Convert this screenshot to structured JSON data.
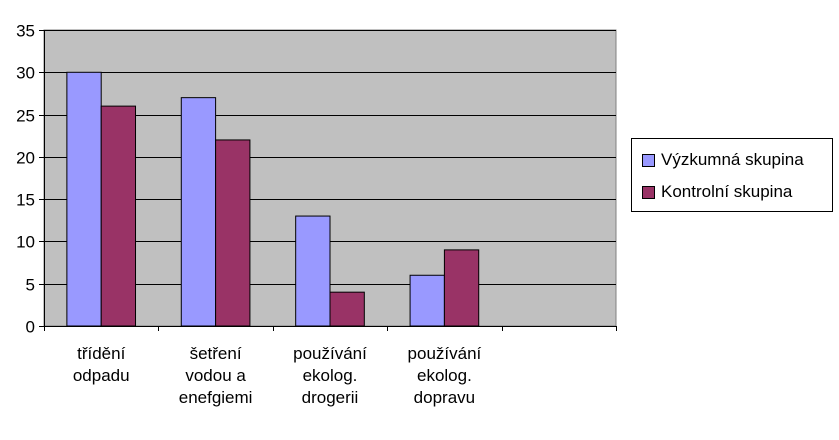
{
  "chart_data": {
    "type": "bar",
    "categories": [
      [
        "třídění",
        "odpadu"
      ],
      [
        "šetření",
        "vodou a",
        "enefgiemi"
      ],
      [
        "používání",
        "ekolog.",
        "drogerii"
      ],
      [
        "používání",
        "ekolog.",
        "dopravu"
      ],
      [
        ""
      ]
    ],
    "series": [
      {
        "name": "Výzkumná skupina",
        "values": [
          30,
          27,
          13,
          6,
          null
        ],
        "color": "#9999ff"
      },
      {
        "name": "Kontrolní skupina",
        "values": [
          26,
          22,
          4,
          9,
          null
        ],
        "color": "#993366"
      }
    ],
    "ylim": [
      0,
      35
    ],
    "yticks": [
      "0",
      "5",
      "10",
      "15",
      "20",
      "25",
      "30",
      "35"
    ],
    "grid": true,
    "plot_background": "#c0c0c0",
    "legend_position": "right",
    "title": "",
    "xlabel": "",
    "ylabel": ""
  }
}
